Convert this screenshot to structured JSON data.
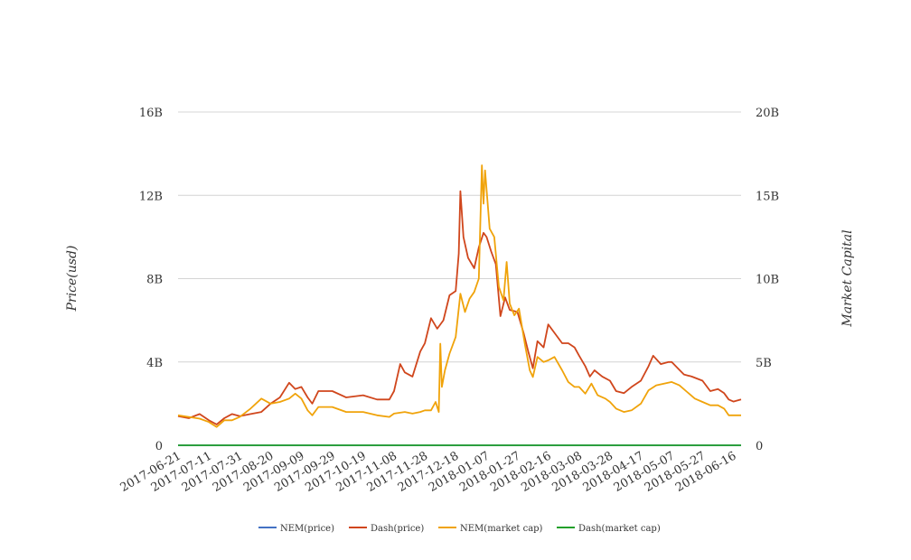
{
  "chart_data": {
    "type": "line",
    "title": "",
    "y_left_label": "Price(usd)",
    "y_right_label": "Market Capital",
    "y_left_ticks": [
      "0",
      "4B",
      "8B",
      "12B",
      "16B"
    ],
    "y_right_ticks": [
      "0",
      "5B",
      "10B",
      "15B",
      "20B"
    ],
    "y_left_range": [
      0,
      16000000000
    ],
    "y_right_range": [
      0,
      20000000000
    ],
    "grid": true,
    "legend_position": "bottom",
    "x_start": "2017-06-21",
    "x_end": "2018-06-21",
    "x_tick_labels": [
      "2017-06-21",
      "2017-07-11",
      "2017-07-31",
      "2017-08-20",
      "2017-09-09",
      "2017-09-29",
      "2017-10-19",
      "2017-11-08",
      "2017-11-28",
      "2017-12-18",
      "2018-01-07",
      "2018-01-27",
      "2018-02-16",
      "2018-03-08",
      "2018-03-28",
      "2018-04-17",
      "2018-05-07",
      "2018-05-27",
      "2018-06-16"
    ],
    "series": [
      {
        "name": "NEM(price)",
        "color": "#4472c4",
        "axis": "left",
        "points": [
          [
            "2017-06-21",
            0.2
          ],
          [
            "2017-09-01",
            0.3
          ],
          [
            "2017-12-01",
            0.25
          ],
          [
            "2018-01-07",
            1.5
          ],
          [
            "2018-03-01",
            0.4
          ],
          [
            "2018-06-21",
            0.15
          ]
        ]
      },
      {
        "name": "Dash(price)",
        "color": "#d0461c",
        "axis": "left",
        "points": [
          [
            "2017-06-21",
            1400000000.0
          ],
          [
            "2017-06-28",
            1300000000.0
          ],
          [
            "2017-07-05",
            1500000000.0
          ],
          [
            "2017-07-11",
            1200000000.0
          ],
          [
            "2017-07-16",
            1000000000.0
          ],
          [
            "2017-07-21",
            1300000000.0
          ],
          [
            "2017-07-26",
            1500000000.0
          ],
          [
            "2017-07-31",
            1400000000.0
          ],
          [
            "2017-08-07",
            1500000000.0
          ],
          [
            "2017-08-14",
            1600000000.0
          ],
          [
            "2017-08-20",
            2000000000.0
          ],
          [
            "2017-08-26",
            2300000000.0
          ],
          [
            "2017-09-01",
            3000000000.0
          ],
          [
            "2017-09-05",
            2700000000.0
          ],
          [
            "2017-09-09",
            2800000000.0
          ],
          [
            "2017-09-13",
            2300000000.0
          ],
          [
            "2017-09-16",
            2000000000.0
          ],
          [
            "2017-09-20",
            2600000000.0
          ],
          [
            "2017-09-29",
            2600000000.0
          ],
          [
            "2017-10-08",
            2300000000.0
          ],
          [
            "2017-10-19",
            2400000000.0
          ],
          [
            "2017-10-28",
            2200000000.0
          ],
          [
            "2017-11-05",
            2200000000.0
          ],
          [
            "2017-11-08",
            2600000000.0
          ],
          [
            "2017-11-12",
            3900000000.0
          ],
          [
            "2017-11-15",
            3500000000.0
          ],
          [
            "2017-11-20",
            3300000000.0
          ],
          [
            "2017-11-25",
            4500000000.0
          ],
          [
            "2017-11-28",
            4900000000.0
          ],
          [
            "2017-12-02",
            6100000000.0
          ],
          [
            "2017-12-06",
            5600000000.0
          ],
          [
            "2017-12-10",
            6000000000.0
          ],
          [
            "2017-12-14",
            7200000000.0
          ],
          [
            "2017-12-18",
            7400000000.0
          ],
          [
            "2017-12-20",
            9200000000.0
          ],
          [
            "2017-12-21",
            12200000000.0
          ],
          [
            "2017-12-23",
            10000000000.0
          ],
          [
            "2017-12-26",
            9000000000.0
          ],
          [
            "2017-12-30",
            8500000000.0
          ],
          [
            "2018-01-02",
            9500000000.0
          ],
          [
            "2018-01-05",
            10200000000.0
          ],
          [
            "2018-01-07",
            10000000000.0
          ],
          [
            "2018-01-10",
            9300000000.0
          ],
          [
            "2018-01-13",
            8700000000.0
          ],
          [
            "2018-01-16",
            6200000000.0
          ],
          [
            "2018-01-19",
            7100000000.0
          ],
          [
            "2018-01-22",
            6500000000.0
          ],
          [
            "2018-01-27",
            6400000000.0
          ],
          [
            "2018-01-31",
            5400000000.0
          ],
          [
            "2018-02-03",
            4500000000.0
          ],
          [
            "2018-02-06",
            3700000000.0
          ],
          [
            "2018-02-09",
            5000000000.0
          ],
          [
            "2018-02-13",
            4700000000.0
          ],
          [
            "2018-02-16",
            5800000000.0
          ],
          [
            "2018-02-20",
            5400000000.0
          ],
          [
            "2018-02-25",
            4900000000.0
          ],
          [
            "2018-03-01",
            4900000000.0
          ],
          [
            "2018-03-05",
            4700000000.0
          ],
          [
            "2018-03-08",
            4300000000.0
          ],
          [
            "2018-03-12",
            3800000000.0
          ],
          [
            "2018-03-15",
            3300000000.0
          ],
          [
            "2018-03-18",
            3600000000.0
          ],
          [
            "2018-03-23",
            3300000000.0
          ],
          [
            "2018-03-28",
            3100000000.0
          ],
          [
            "2018-04-01",
            2600000000.0
          ],
          [
            "2018-04-06",
            2500000000.0
          ],
          [
            "2018-04-11",
            2800000000.0
          ],
          [
            "2018-04-17",
            3100000000.0
          ],
          [
            "2018-04-22",
            3800000000.0
          ],
          [
            "2018-04-25",
            4300000000.0
          ],
          [
            "2018-04-30",
            3900000000.0
          ],
          [
            "2018-05-05",
            4000000000.0
          ],
          [
            "2018-05-07",
            4000000000.0
          ],
          [
            "2018-05-11",
            3700000000.0
          ],
          [
            "2018-05-15",
            3400000000.0
          ],
          [
            "2018-05-20",
            3300000000.0
          ],
          [
            "2018-05-27",
            3100000000.0
          ],
          [
            "2018-06-01",
            2600000000.0
          ],
          [
            "2018-06-06",
            2700000000.0
          ],
          [
            "2018-06-10",
            2500000000.0
          ],
          [
            "2018-06-13",
            2200000000.0
          ],
          [
            "2018-06-16",
            2100000000.0
          ],
          [
            "2018-06-21",
            2200000000.0
          ]
        ]
      },
      {
        "name": "NEM(market cap)",
        "color": "#f0a30a",
        "axis": "right",
        "points": [
          [
            "2017-06-21",
            1800000000.0
          ],
          [
            "2017-06-28",
            1700000000.0
          ],
          [
            "2017-07-05",
            1600000000.0
          ],
          [
            "2017-07-11",
            1400000000.0
          ],
          [
            "2017-07-16",
            1100000000.0
          ],
          [
            "2017-07-21",
            1500000000.0
          ],
          [
            "2017-07-26",
            1500000000.0
          ],
          [
            "2017-07-31",
            1700000000.0
          ],
          [
            "2017-08-07",
            2200000000.0
          ],
          [
            "2017-08-14",
            2800000000.0
          ],
          [
            "2017-08-20",
            2500000000.0
          ],
          [
            "2017-08-26",
            2600000000.0
          ],
          [
            "2017-09-01",
            2800000000.0
          ],
          [
            "2017-09-05",
            3100000000.0
          ],
          [
            "2017-09-09",
            2800000000.0
          ],
          [
            "2017-09-13",
            2100000000.0
          ],
          [
            "2017-09-16",
            1800000000.0
          ],
          [
            "2017-09-20",
            2300000000.0
          ],
          [
            "2017-09-29",
            2300000000.0
          ],
          [
            "2017-10-08",
            2000000000.0
          ],
          [
            "2017-10-19",
            2000000000.0
          ],
          [
            "2017-10-28",
            1800000000.0
          ],
          [
            "2017-11-05",
            1700000000.0
          ],
          [
            "2017-11-08",
            1900000000.0
          ],
          [
            "2017-11-15",
            2000000000.0
          ],
          [
            "2017-11-20",
            1900000000.0
          ],
          [
            "2017-11-25",
            2000000000.0
          ],
          [
            "2017-11-28",
            2100000000.0
          ],
          [
            "2017-12-02",
            2100000000.0
          ],
          [
            "2017-12-05",
            2600000000.0
          ],
          [
            "2017-12-07",
            2000000000.0
          ],
          [
            "2017-12-08",
            6100000000.0
          ],
          [
            "2017-12-09",
            3500000000.0
          ],
          [
            "2017-12-11",
            4500000000.0
          ],
          [
            "2017-12-14",
            5500000000.0
          ],
          [
            "2017-12-18",
            6500000000.0
          ],
          [
            "2017-12-21",
            9100000000.0
          ],
          [
            "2017-12-24",
            8000000000.0
          ],
          [
            "2017-12-27",
            8800000000.0
          ],
          [
            "2017-12-30",
            9200000000.0
          ],
          [
            "2018-01-02",
            10000000000.0
          ],
          [
            "2018-01-04",
            16800000000.0
          ],
          [
            "2018-01-05",
            14500000000.0
          ],
          [
            "2018-01-06",
            16500000000.0
          ],
          [
            "2018-01-09",
            13000000000.0
          ],
          [
            "2018-01-12",
            12500000000.0
          ],
          [
            "2018-01-15",
            9500000000.0
          ],
          [
            "2018-01-18",
            8700000000.0
          ],
          [
            "2018-01-20",
            11000000000.0
          ],
          [
            "2018-01-22",
            8500000000.0
          ],
          [
            "2018-01-25",
            7800000000.0
          ],
          [
            "2018-01-28",
            8200000000.0
          ],
          [
            "2018-02-01",
            6000000000.0
          ],
          [
            "2018-02-04",
            4500000000.0
          ],
          [
            "2018-02-06",
            4100000000.0
          ],
          [
            "2018-02-09",
            5300000000.0
          ],
          [
            "2018-02-13",
            5000000000.0
          ],
          [
            "2018-02-16",
            5100000000.0
          ],
          [
            "2018-02-20",
            5300000000.0
          ],
          [
            "2018-02-25",
            4500000000.0
          ],
          [
            "2018-03-01",
            3800000000.0
          ],
          [
            "2018-03-05",
            3500000000.0
          ],
          [
            "2018-03-08",
            3500000000.0
          ],
          [
            "2018-03-12",
            3100000000.0
          ],
          [
            "2018-03-16",
            3700000000.0
          ],
          [
            "2018-03-20",
            3000000000.0
          ],
          [
            "2018-03-25",
            2800000000.0
          ],
          [
            "2018-03-28",
            2600000000.0
          ],
          [
            "2018-04-01",
            2200000000.0
          ],
          [
            "2018-04-06",
            2000000000.0
          ],
          [
            "2018-04-11",
            2100000000.0
          ],
          [
            "2018-04-17",
            2500000000.0
          ],
          [
            "2018-04-22",
            3300000000.0
          ],
          [
            "2018-04-27",
            3600000000.0
          ],
          [
            "2018-05-02",
            3700000000.0
          ],
          [
            "2018-05-07",
            3800000000.0
          ],
          [
            "2018-05-12",
            3600000000.0
          ],
          [
            "2018-05-17",
            3200000000.0
          ],
          [
            "2018-05-22",
            2800000000.0
          ],
          [
            "2018-05-27",
            2600000000.0
          ],
          [
            "2018-06-01",
            2400000000.0
          ],
          [
            "2018-06-06",
            2400000000.0
          ],
          [
            "2018-06-10",
            2200000000.0
          ],
          [
            "2018-06-13",
            1800000000.0
          ],
          [
            "2018-06-16",
            1800000000.0
          ],
          [
            "2018-06-21",
            1800000000.0
          ]
        ]
      },
      {
        "name": "Dash(market cap)",
        "color": "#22a02a",
        "axis": "right",
        "points": [
          [
            "2017-06-21",
            0.2
          ],
          [
            "2017-12-01",
            0.3
          ],
          [
            "2018-01-07",
            0.6
          ],
          [
            "2018-06-21",
            0.2
          ]
        ]
      }
    ]
  }
}
